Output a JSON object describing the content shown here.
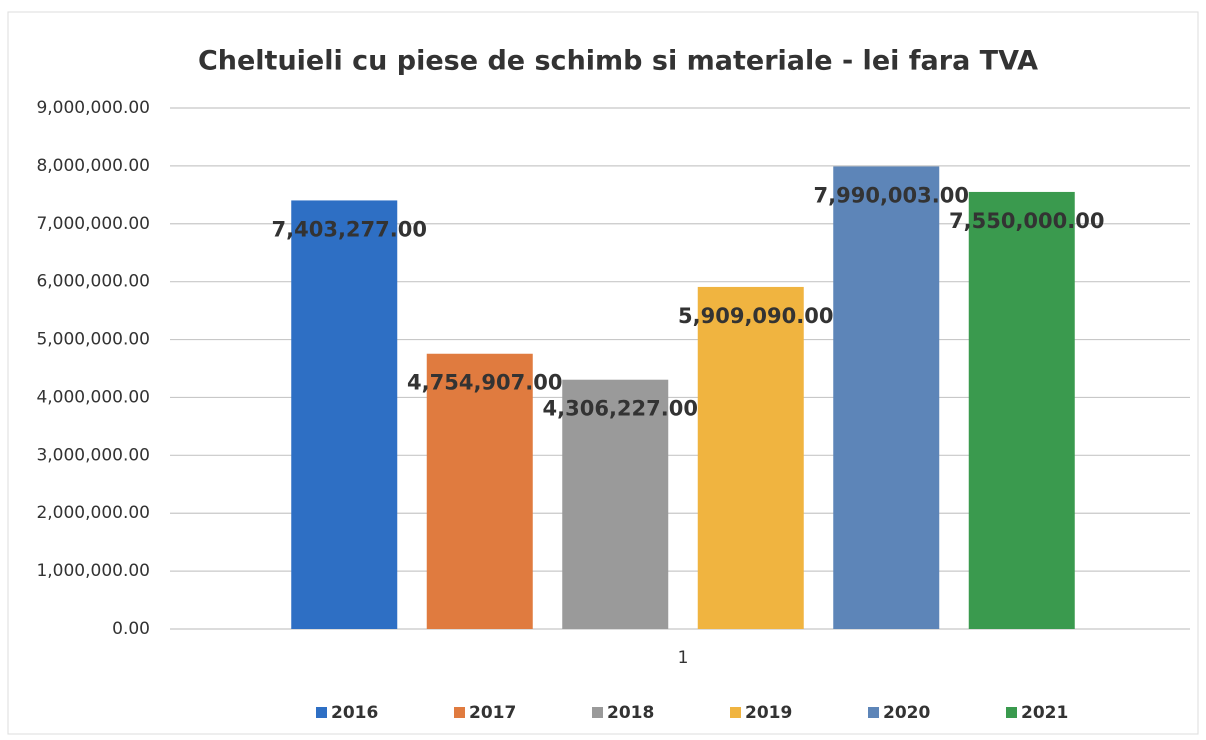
{
  "chart_data": {
    "type": "bar",
    "title": "Cheltuieli cu piese de schimb si materiale - lei fara TVA",
    "categories": [
      "1"
    ],
    "series": [
      {
        "name": "2016",
        "color": "#2e6fc4",
        "values": [
          7403277
        ],
        "value_labels": [
          "7,403,277.00"
        ]
      },
      {
        "name": "2017",
        "color": "#e07b3f",
        "values": [
          4754907
        ],
        "value_labels": [
          "4,754,907.00"
        ]
      },
      {
        "name": "2018",
        "color": "#9a9a9a",
        "values": [
          4306227
        ],
        "value_labels": [
          "4,306,227.00"
        ]
      },
      {
        "name": "2019",
        "color": "#f0b440",
        "values": [
          5909090
        ],
        "value_labels": [
          "5,909,090.00"
        ]
      },
      {
        "name": "2020",
        "color": "#5d85b8",
        "values": [
          7990003
        ],
        "value_labels": [
          "7,990,003.00"
        ]
      },
      {
        "name": "2021",
        "color": "#3a9a4e",
        "values": [
          7550000
        ],
        "value_labels": [
          "7,550,000.00"
        ]
      }
    ],
    "ylim": [
      0,
      9000000
    ],
    "yticks": [
      {
        "value": 0,
        "label": "0.00"
      },
      {
        "value": 1000000,
        "label": "1,000,000.00"
      },
      {
        "value": 2000000,
        "label": "2,000,000.00"
      },
      {
        "value": 3000000,
        "label": "3,000,000.00"
      },
      {
        "value": 4000000,
        "label": "4,000,000.00"
      },
      {
        "value": 5000000,
        "label": "5,000,000.00"
      },
      {
        "value": 6000000,
        "label": "6,000,000.00"
      },
      {
        "value": 7000000,
        "label": "7,000,000.00"
      },
      {
        "value": 8000000,
        "label": "8,000,000.00"
      },
      {
        "value": 9000000,
        "label": "9,000,000.00"
      }
    ],
    "grid": true,
    "legend": "bottom"
  }
}
